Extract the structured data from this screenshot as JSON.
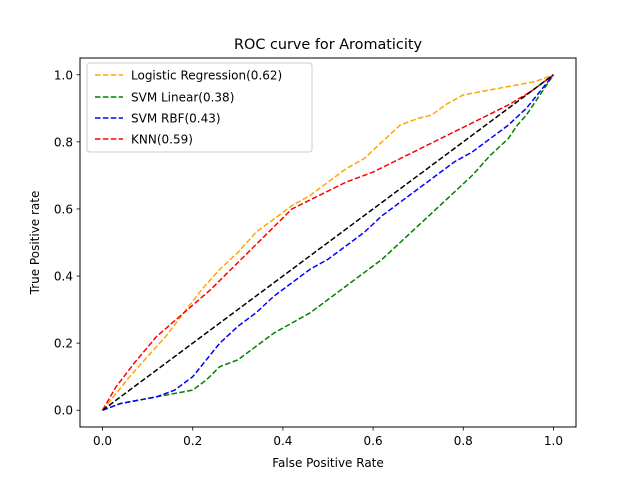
{
  "chart_data": {
    "type": "line",
    "title": "ROC curve for Aromaticity",
    "xlabel": "False Positive Rate",
    "ylabel": "True Positive rate",
    "xlim": [
      -0.05,
      1.05
    ],
    "ylim": [
      -0.05,
      1.05
    ],
    "xticks": [
      0.0,
      0.2,
      0.4,
      0.6,
      0.8,
      1.0
    ],
    "yticks": [
      0.0,
      0.2,
      0.4,
      0.6,
      0.8,
      1.0
    ],
    "xtick_labels": [
      "0.0",
      "0.2",
      "0.4",
      "0.6",
      "0.8",
      "1.0"
    ],
    "ytick_labels": [
      "0.0",
      "0.2",
      "0.4",
      "0.6",
      "0.8",
      "1.0"
    ],
    "legend_position": "top-left",
    "series": [
      {
        "name": "Logistic Regression(0.62)",
        "color": "#ffa500",
        "dash": "dashed",
        "x": [
          0.0,
          0.03,
          0.06,
          0.1,
          0.14,
          0.18,
          0.22,
          0.26,
          0.3,
          0.34,
          0.38,
          0.42,
          0.46,
          0.5,
          0.54,
          0.58,
          0.62,
          0.66,
          0.7,
          0.73,
          0.76,
          0.8,
          0.84,
          0.88,
          0.92,
          0.96,
          1.0
        ],
        "y": [
          0.0,
          0.05,
          0.1,
          0.16,
          0.22,
          0.29,
          0.36,
          0.42,
          0.47,
          0.53,
          0.57,
          0.61,
          0.64,
          0.68,
          0.72,
          0.75,
          0.8,
          0.85,
          0.87,
          0.88,
          0.91,
          0.94,
          0.95,
          0.96,
          0.97,
          0.98,
          1.0
        ]
      },
      {
        "name": "SVM Linear(0.38)",
        "color": "#008000",
        "dash": "dashed",
        "x": [
          0.0,
          0.04,
          0.08,
          0.12,
          0.16,
          0.2,
          0.23,
          0.26,
          0.3,
          0.34,
          0.38,
          0.42,
          0.46,
          0.5,
          0.54,
          0.58,
          0.62,
          0.66,
          0.7,
          0.74,
          0.78,
          0.82,
          0.86,
          0.9,
          0.92,
          0.94,
          0.97,
          1.0
        ],
        "y": [
          0.0,
          0.02,
          0.03,
          0.04,
          0.05,
          0.06,
          0.09,
          0.13,
          0.15,
          0.19,
          0.23,
          0.26,
          0.29,
          0.33,
          0.37,
          0.41,
          0.45,
          0.5,
          0.55,
          0.6,
          0.65,
          0.7,
          0.76,
          0.81,
          0.85,
          0.88,
          0.94,
          1.0
        ]
      },
      {
        "name": "SVM RBF(0.43)",
        "color": "#0000ff",
        "dash": "dashed",
        "x": [
          0.0,
          0.04,
          0.08,
          0.12,
          0.16,
          0.2,
          0.23,
          0.26,
          0.3,
          0.34,
          0.38,
          0.42,
          0.46,
          0.5,
          0.54,
          0.58,
          0.62,
          0.66,
          0.7,
          0.74,
          0.78,
          0.82,
          0.86,
          0.9,
          0.94,
          0.97,
          1.0
        ],
        "y": [
          0.0,
          0.02,
          0.03,
          0.04,
          0.06,
          0.1,
          0.15,
          0.2,
          0.25,
          0.29,
          0.34,
          0.38,
          0.42,
          0.45,
          0.49,
          0.53,
          0.58,
          0.62,
          0.66,
          0.7,
          0.74,
          0.77,
          0.81,
          0.85,
          0.9,
          0.95,
          1.0
        ]
      },
      {
        "name": "KNN(0.59)",
        "color": "#ff0000",
        "dash": "dashed",
        "x": [
          0.0,
          0.03,
          0.07,
          0.12,
          0.18,
          0.24,
          0.3,
          0.36,
          0.42,
          0.48,
          0.54,
          0.6,
          0.66,
          0.72,
          0.78,
          0.84,
          0.9,
          0.95,
          1.0
        ],
        "y": [
          0.0,
          0.07,
          0.14,
          0.22,
          0.29,
          0.36,
          0.44,
          0.52,
          0.6,
          0.64,
          0.68,
          0.71,
          0.75,
          0.79,
          0.83,
          0.87,
          0.91,
          0.95,
          1.0
        ]
      },
      {
        "name": "",
        "color": "#000000",
        "dash": "dashed",
        "x": [
          0.0,
          1.0
        ],
        "y": [
          0.0,
          1.0
        ]
      }
    ]
  }
}
